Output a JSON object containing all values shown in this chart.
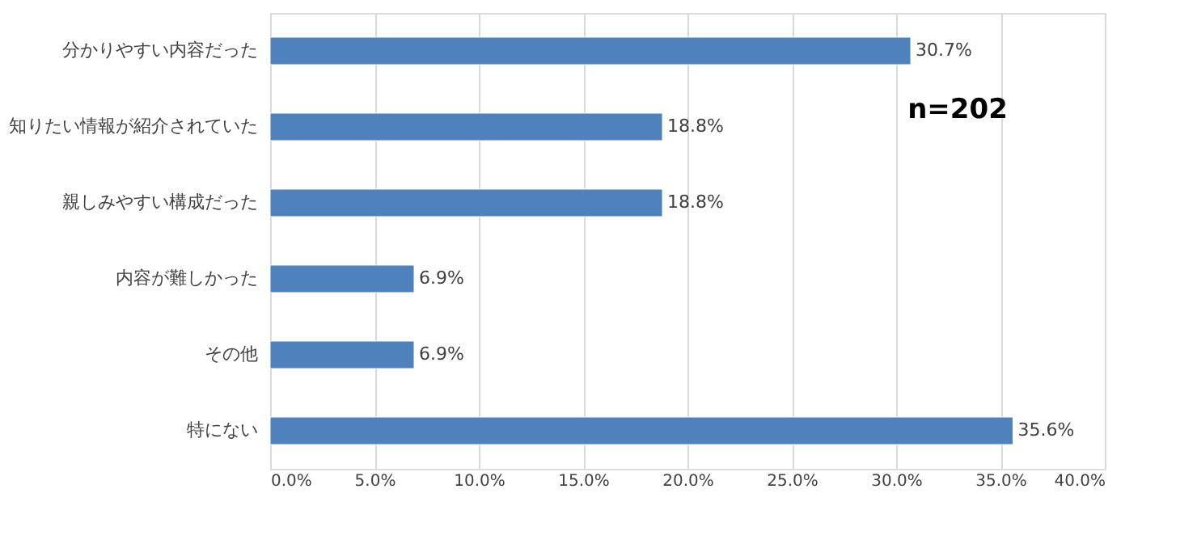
{
  "chart_data": {
    "type": "bar",
    "orientation": "horizontal",
    "categories": [
      "分かりやすい内容だった",
      "知りたい情報が紹介されていた",
      "親しみやすい構成だった",
      "内容が難しかった",
      "その他",
      "特にない"
    ],
    "values": [
      30.7,
      18.8,
      18.8,
      6.9,
      6.9,
      35.6
    ],
    "color": "#4f81bd",
    "value_labels": [
      "30.7%",
      "18.8%",
      "18.8%",
      "6.9%",
      "6.9%",
      "35.6%"
    ],
    "xlim": [
      0,
      40
    ],
    "xticks": [
      {
        "value": 0,
        "label": "0.0%"
      },
      {
        "value": 5,
        "label": "5.0%"
      },
      {
        "value": 10,
        "label": "10.0%"
      },
      {
        "value": 15,
        "label": "15.0%"
      },
      {
        "value": 20,
        "label": "20.0%"
      },
      {
        "value": 25,
        "label": "25.0%"
      },
      {
        "value": 30,
        "label": "30.0%"
      },
      {
        "value": 35,
        "label": "35.0%"
      },
      {
        "value": 40,
        "label": "40.0%"
      }
    ],
    "grid": "x",
    "annotations": [
      "n=202"
    ]
  }
}
